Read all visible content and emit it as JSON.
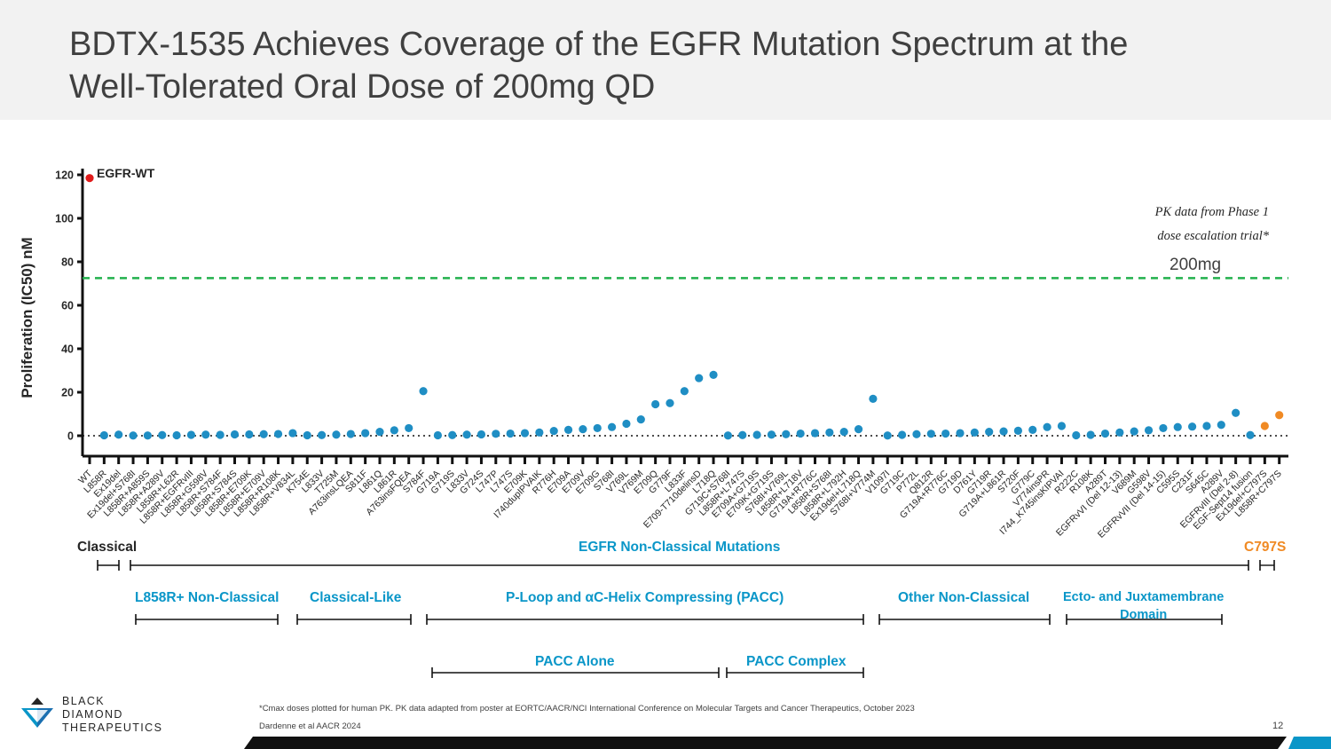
{
  "title": {
    "line1": "BDTX-1535 Achieves Coverage of the EGFR Mutation Spectrum at the",
    "line2": "Well-Tolerated Oral Dose of 200mg QD"
  },
  "chart_data": {
    "type": "scatter",
    "ylabel": "Proliferation (IC50) nM",
    "ylim": [
      -8,
      122
    ],
    "yticks": [
      0,
      20,
      40,
      60,
      80,
      100,
      120
    ],
    "baseline": 0,
    "reference_line": {
      "value": 72.5,
      "label": "200mg",
      "style": "dashed",
      "color": "#22b14c"
    },
    "annotations": {
      "wt_label": "EGFR-WT"
    },
    "series": [
      {
        "name": "WT",
        "color": "#e01b1b",
        "points": [
          {
            "x": "WT",
            "y": 118.5
          }
        ]
      },
      {
        "name": "EGFR mutations",
        "color": "#1f8ec4",
        "points": [
          {
            "x": "L858R",
            "y": 0.2
          },
          {
            "x": "Ex19del",
            "y": 0.5
          },
          {
            "x": "Ex19del+S768I",
            "y": 0.1
          },
          {
            "x": "L858R+A859S",
            "y": 0.1
          },
          {
            "x": "L858R+A289V",
            "y": 0.3
          },
          {
            "x": "L858R+L62R",
            "y": 0.2
          },
          {
            "x": "L858R+EGFRvIII",
            "y": 0.4
          },
          {
            "x": "L858R+G598V",
            "y": 0.5
          },
          {
            "x": "L858R+S784F",
            "y": 0.4
          },
          {
            "x": "L858R+S784S",
            "y": 0.6
          },
          {
            "x": "L858R+E709K",
            "y": 0.6
          },
          {
            "x": "L858R+E709V",
            "y": 0.7
          },
          {
            "x": "L858R+R108K",
            "y": 0.8
          },
          {
            "x": "L858R+V834L",
            "y": 1.2
          },
          {
            "x": "K754E",
            "y": 0.2
          },
          {
            "x": "L833V",
            "y": 0.3
          },
          {
            "x": "T725M",
            "y": 0.5
          },
          {
            "x": "A763insLQEA",
            "y": 0.8
          },
          {
            "x": "S811F",
            "y": 1.2
          },
          {
            "x": "L861Q",
            "y": 1.8
          },
          {
            "x": "L861R",
            "y": 2.5
          },
          {
            "x": "A763insFQEA",
            "y": 3.5
          },
          {
            "x": "S784F",
            "y": 20.5
          },
          {
            "x": "G719A",
            "y": 0.2
          },
          {
            "x": "G719S",
            "y": 0.3
          },
          {
            "x": "L833V",
            "y": 0.5
          },
          {
            "x": "G724S",
            "y": 0.6
          },
          {
            "x": "L747P",
            "y": 0.9
          },
          {
            "x": "L747S",
            "y": 1.0
          },
          {
            "x": "E709K",
            "y": 1.2
          },
          {
            "x": "I740dupIPVAIK",
            "y": 1.5
          },
          {
            "x": "R776H",
            "y": 2.2
          },
          {
            "x": "E709A",
            "y": 2.7
          },
          {
            "x": "E709V",
            "y": 3.0
          },
          {
            "x": "E709G",
            "y": 3.5
          },
          {
            "x": "S768I",
            "y": 4.0
          },
          {
            "x": "V769L",
            "y": 5.5
          },
          {
            "x": "V769M",
            "y": 7.5
          },
          {
            "x": "E709Q",
            "y": 14.5
          },
          {
            "x": "G779F",
            "y": 15.0
          },
          {
            "x": "L833F",
            "y": 20.5
          },
          {
            "x": "E709-T710delinsD",
            "y": 26.5
          },
          {
            "x": "L718Q",
            "y": 28.0
          },
          {
            "x": "G719C+S768I",
            "y": 0.1
          },
          {
            "x": "L858R+L747S",
            "y": 0.3
          },
          {
            "x": "E709A+G719S",
            "y": 0.4
          },
          {
            "x": "E709K+G719S",
            "y": 0.5
          },
          {
            "x": "S768I+V769L",
            "y": 0.7
          },
          {
            "x": "L858R+L718V",
            "y": 1.0
          },
          {
            "x": "G719A+R776C",
            "y": 1.2
          },
          {
            "x": "L858R+S768I",
            "y": 1.5
          },
          {
            "x": "L858R+L792H",
            "y": 1.8
          },
          {
            "x": "Ex19del+L718Q",
            "y": 3.0
          },
          {
            "x": "S768I+V774M",
            "y": 17.0
          },
          {
            "x": "V1097I",
            "y": 0.1
          },
          {
            "x": "G719C",
            "y": 0.4
          },
          {
            "x": "P772L",
            "y": 0.7
          },
          {
            "x": "Q812R",
            "y": 0.9
          },
          {
            "x": "G719A+R776C",
            "y": 1.0
          },
          {
            "x": "G719D",
            "y": 1.2
          },
          {
            "x": "D761Y",
            "y": 1.5
          },
          {
            "x": "G719R",
            "y": 1.8
          },
          {
            "x": "G719A+L861R",
            "y": 2.0
          },
          {
            "x": "S720F",
            "y": 2.3
          },
          {
            "x": "G779C",
            "y": 2.7
          },
          {
            "x": "V774insPR",
            "y": 4.0
          },
          {
            "x": "I744_K745insKIPVAI",
            "y": 4.5
          },
          {
            "x": "R222C",
            "y": 0.2
          },
          {
            "x": "R108K",
            "y": 0.4
          },
          {
            "x": "A289T",
            "y": 1.0
          },
          {
            "x": "EGFRvVI (Del 12-13)",
            "y": 1.5
          },
          {
            "x": "V689M",
            "y": 2.0
          },
          {
            "x": "G598V",
            "y": 2.5
          },
          {
            "x": "EGFRvVII (Del 14-15)",
            "y": 3.5
          },
          {
            "x": "C595S",
            "y": 4.0
          },
          {
            "x": "C231F",
            "y": 4.2
          },
          {
            "x": "S645C",
            "y": 4.5
          },
          {
            "x": "A289V",
            "y": 5.0
          },
          {
            "x": "EGFRvIII (Del 2-8)",
            "y": 10.5
          },
          {
            "x": "EGF-Sept14 fusion",
            "y": 0.3
          }
        ]
      },
      {
        "name": "C797S",
        "color": "#f08a24",
        "points": [
          {
            "x": "Ex19del+C797S",
            "y": 4.5
          },
          {
            "x": "L858R+C797S",
            "y": 9.5
          }
        ]
      }
    ]
  },
  "pk_note": {
    "line1": "PK data from Phase 1",
    "line2": "dose escalation trial*"
  },
  "groups": {
    "classical": "Classical",
    "non_classical": "EGFR Non-Classical Mutations",
    "c797s": "C797S",
    "l858r_nc": "L858R+ Non-Classical",
    "classical_like": "Classical-Like",
    "pacc": "P-Loop and αC-Helix Compressing (PACC)",
    "other_nc": "Other Non-Classical",
    "ecto_line1": "Ecto- and Juxtamembrane",
    "ecto_line2": "Domain",
    "pacc_alone": "PACC Alone",
    "pacc_complex": "PACC Complex"
  },
  "colors": {
    "blue": "#0a96c8",
    "orange": "#f08a24",
    "red": "#e01b1b",
    "green": "#22b14c"
  },
  "footer": {
    "note": "*Cmax doses plotted for human PK.  PK data adapted from poster at  EORTC/AACR/NCI International Conference on Molecular Targets and Cancer Therapeutics, October 2023",
    "cite": "Dardenne et al AACR 2024",
    "page": "12"
  },
  "logo": {
    "line1": "BLACK",
    "line2": "DIAMOND",
    "line3": "THERAPEUTICS",
    "icon": "black-diamond-logo-icon"
  }
}
